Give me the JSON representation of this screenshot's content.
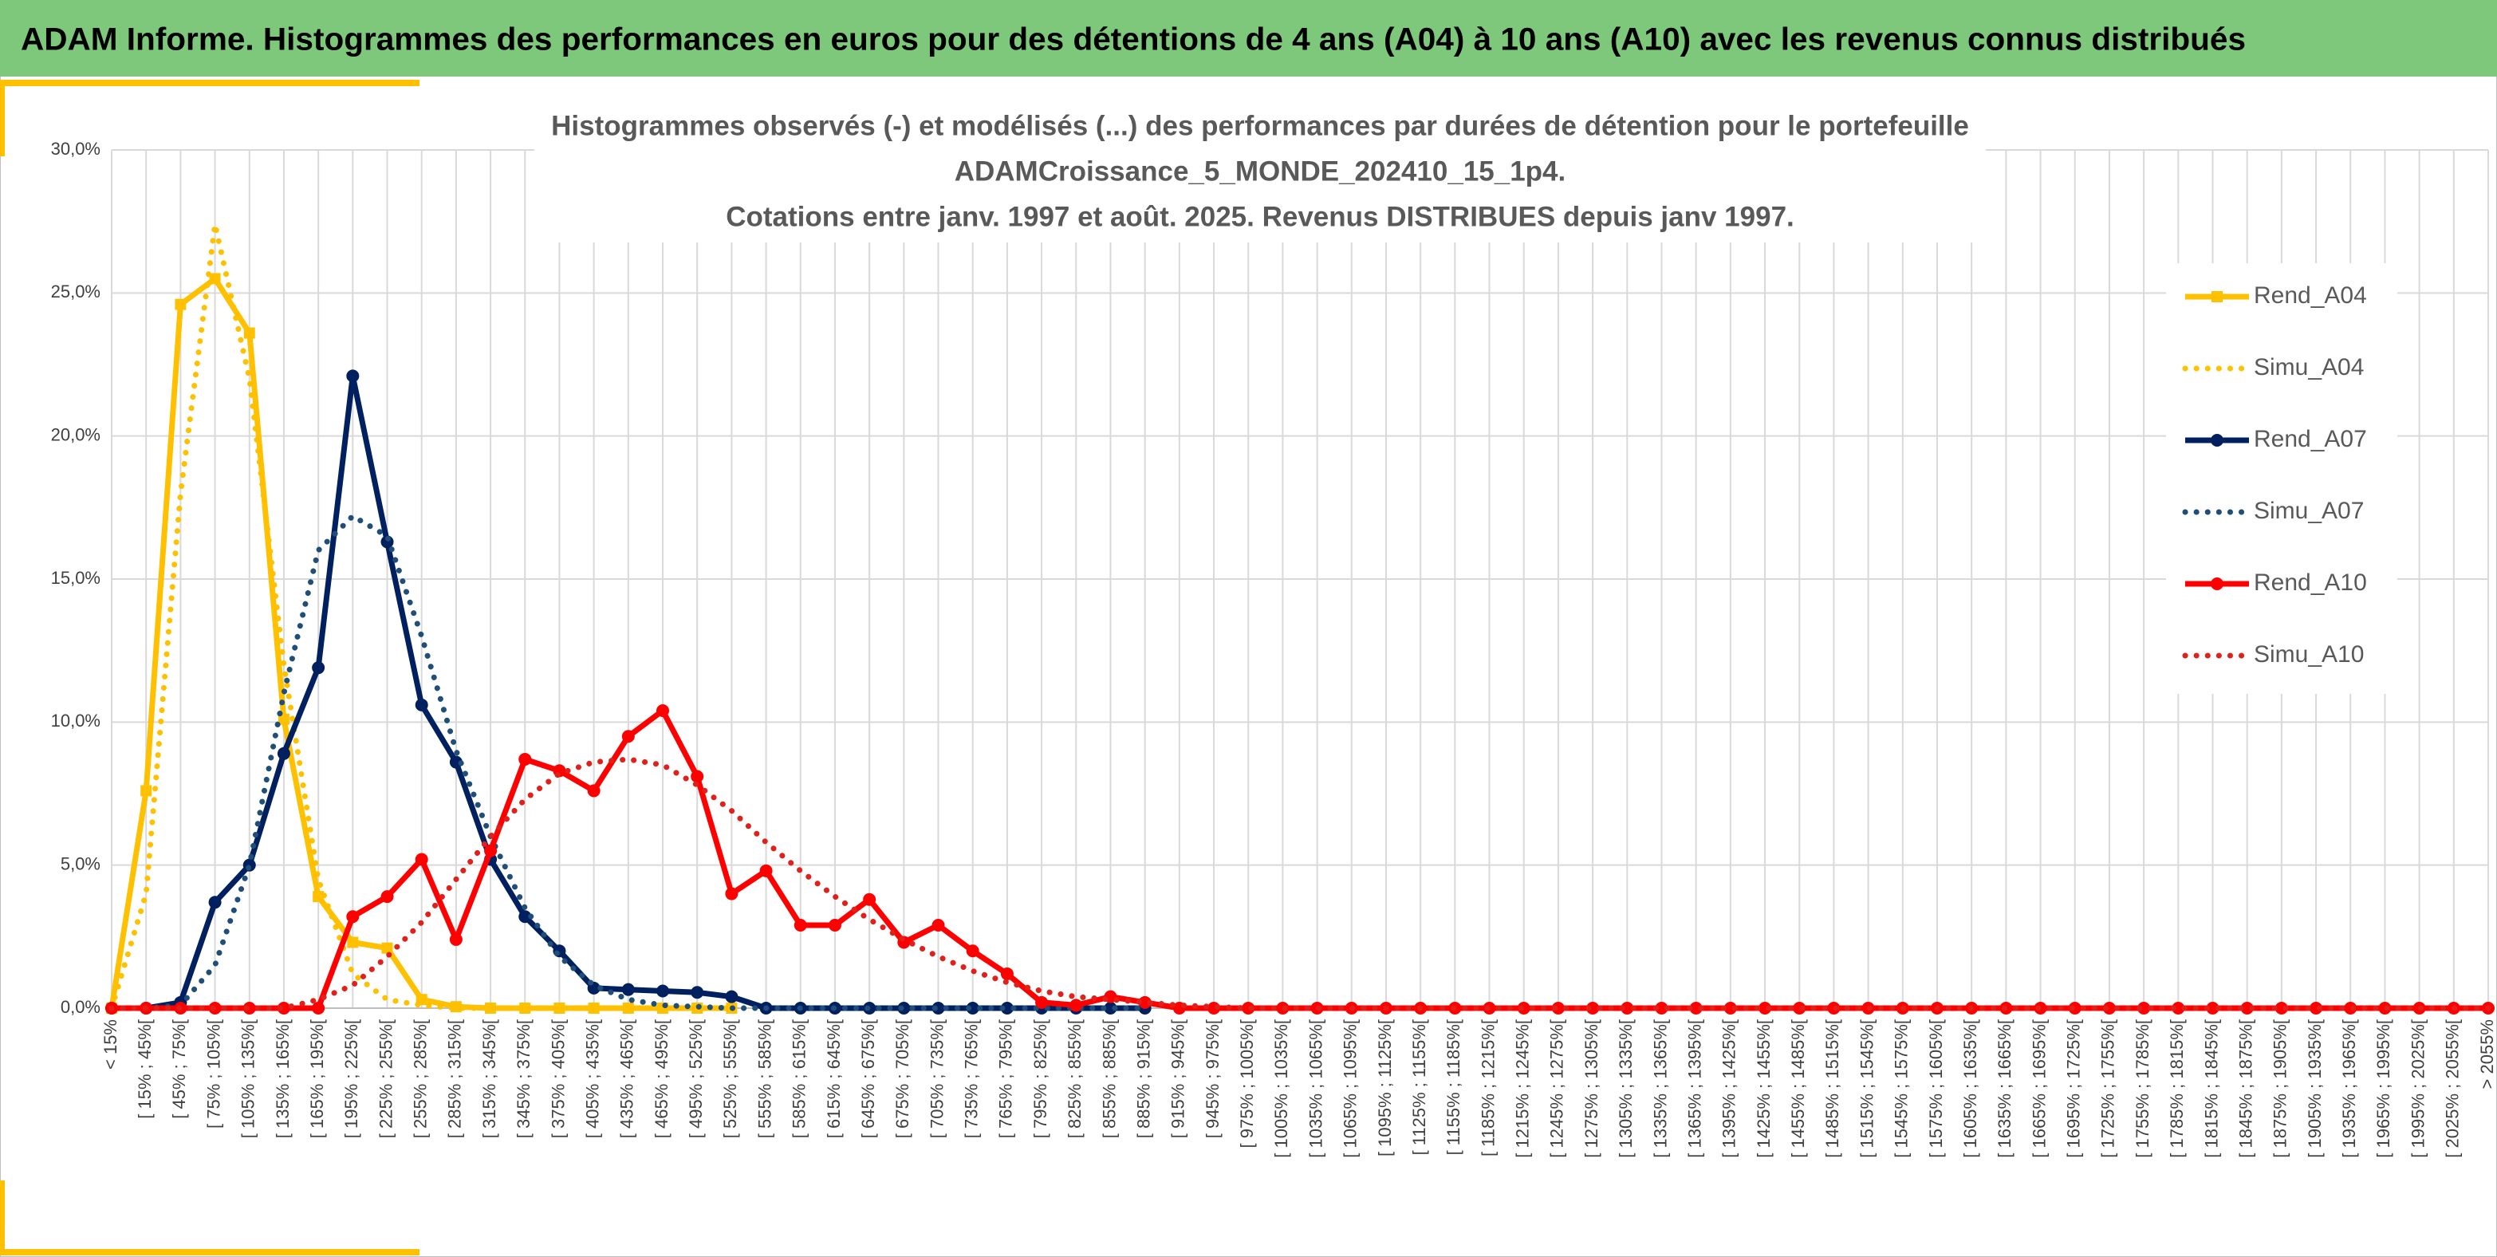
{
  "header": {
    "title": "ADAM Informe. Histogrammes des performances en euros pour des détentions de 4 ans (A04) à 10 ans (A10) avec les revenus connus distribués"
  },
  "chart_data": {
    "type": "line",
    "title": [
      "Histogrammes observés (-) et modélisés (...) des performances par durées de détention pour le portefeuille",
      "ADAMCroissance_5_MONDE_202410_15_1p4.",
      "Cotations entre janv. 1997 et août. 2025. Revenus DISTRIBUES depuis janv 1997."
    ],
    "categories": [
      "< 15%",
      "[ 15% ; 45%[",
      "[ 45% ; 75%[",
      "[ 75% ; 105%[",
      "[ 105% ; 135%[",
      "[ 135% ; 165%[",
      "[ 165% ; 195%[",
      "[ 195% ; 225%[",
      "[ 225% ; 255%[",
      "[ 255% ; 285%[",
      "[ 285% ; 315%[",
      "[ 315% ; 345%[",
      "[ 345% ; 375%[",
      "[ 375% ; 405%[",
      "[ 405% ; 435%[",
      "[ 435% ; 465%[",
      "[ 465% ; 495%[",
      "[ 495% ; 525%[",
      "[ 525% ; 555%[",
      "[ 555% ; 585%[",
      "[ 585% ; 615%[",
      "[ 615% ; 645%[",
      "[ 645% ; 675%[",
      "[ 675% ; 705%[",
      "[ 705% ; 735%[",
      "[ 735% ; 765%[",
      "[ 765% ; 795%[",
      "[ 795% ; 825%[",
      "[ 825% ; 855%[",
      "[ 855% ; 885%[",
      "[ 885% ; 915%[",
      "[ 915% ; 945%[",
      "[ 945% ; 975%[",
      "[ 975% ; 1005%[",
      "[ 1005% ; 1035%[",
      "[ 1035% ; 1065%[",
      "[ 1065% ; 1095%[",
      "[ 1095% ; 1125%[",
      "[ 1125% ; 1155%[",
      "[ 1155% ; 1185%[",
      "[ 1185% ; 1215%[",
      "[ 1215% ; 1245%[",
      "[ 1245% ; 1275%[",
      "[ 1275% ; 1305%[",
      "[ 1305% ; 1335%[",
      "[ 1335% ; 1365%[",
      "[ 1365% ; 1395%[",
      "[ 1395% ; 1425%[",
      "[ 1425% ; 1455%[",
      "[ 1455% ; 1485%[",
      "[ 1485% ; 1515%[",
      "[ 1515% ; 1545%[",
      "[ 1545% ; 1575%[",
      "[ 1575% ; 1605%[",
      "[ 1605% ; 1635%[",
      "[ 1635% ; 1665%[",
      "[ 1665% ; 1695%[",
      "[ 1695% ; 1725%[",
      "[ 1725% ; 1755%[",
      "[ 1755% ; 1785%[",
      "[ 1785% ; 1815%[",
      "[ 1815% ; 1845%[",
      "[ 1845% ; 1875%[",
      "[ 1875% ; 1905%[",
      "[ 1905% ; 1935%[",
      "[ 1935% ; 1965%[",
      "[ 1965% ; 1995%[",
      "[ 1995% ; 2025%[",
      "[ 2025% ; 2055%[",
      "> 2055%"
    ],
    "series": [
      {
        "name": "Rend_A04",
        "color": "#FFC000",
        "style": "solid",
        "marker": "square",
        "values": [
          0,
          7.6,
          24.6,
          25.5,
          23.6,
          10.1,
          3.9,
          2.3,
          2.1,
          0.3,
          0.05,
          0,
          0,
          0,
          0,
          0,
          0,
          0,
          0,
          null,
          null,
          null,
          null,
          null,
          null,
          null,
          null,
          null,
          null,
          null,
          null,
          null,
          null,
          null,
          null,
          null,
          null,
          null,
          null,
          null,
          null,
          null,
          null,
          null,
          null,
          null,
          null,
          null,
          null,
          null,
          null,
          null,
          null,
          null,
          null,
          null,
          null,
          null,
          null,
          null,
          null,
          null,
          null,
          null,
          null,
          null,
          null,
          null,
          null,
          null
        ]
      },
      {
        "name": "Simu_A04",
        "color": "#FFC000",
        "style": "dotted",
        "marker": "none",
        "values": [
          0,
          4,
          18,
          27.4,
          22,
          12,
          4.5,
          1.2,
          0.3,
          0.1,
          0,
          0,
          0,
          0,
          0,
          0,
          0,
          0,
          0,
          null,
          null,
          null,
          null,
          null,
          null,
          null,
          null,
          null,
          null,
          null,
          null,
          null,
          null,
          null,
          null,
          null,
          null,
          null,
          null,
          null,
          null,
          null,
          null,
          null,
          null,
          null,
          null,
          null,
          null,
          null,
          null,
          null,
          null,
          null,
          null,
          null,
          null,
          null,
          null,
          null,
          null,
          null,
          null,
          null,
          null,
          null,
          null,
          null,
          null,
          null
        ]
      },
      {
        "name": "Rend_A07",
        "color": "#002060",
        "style": "solid",
        "marker": "circle",
        "values": [
          0,
          0,
          0.2,
          3.7,
          5.0,
          8.9,
          11.9,
          22.1,
          16.3,
          10.6,
          8.6,
          5.2,
          3.2,
          2.0,
          0.7,
          0.65,
          0.6,
          0.55,
          0.4,
          0,
          0,
          0,
          0,
          0,
          0,
          0,
          0,
          0,
          0,
          0,
          0,
          null,
          null,
          null,
          null,
          null,
          null,
          null,
          null,
          null,
          null,
          null,
          null,
          null,
          null,
          null,
          null,
          null,
          null,
          null,
          null,
          null,
          null,
          null,
          null,
          null,
          null,
          null,
          null,
          null,
          null,
          null,
          null,
          null,
          null,
          null,
          null,
          null,
          null,
          null
        ]
      },
      {
        "name": "Simu_A07",
        "color": "#1F4E79",
        "style": "dotted",
        "marker": "none",
        "values": [
          0,
          0,
          0.1,
          1.5,
          5,
          11,
          16,
          17.2,
          16.5,
          13,
          9,
          6,
          3.5,
          1.8,
          0.8,
          0.3,
          0.1,
          0.05,
          0,
          0,
          0,
          0,
          0,
          0,
          0,
          0,
          0,
          0,
          0,
          0,
          0,
          null,
          null,
          null,
          null,
          null,
          null,
          null,
          null,
          null,
          null,
          null,
          null,
          null,
          null,
          null,
          null,
          null,
          null,
          null,
          null,
          null,
          null,
          null,
          null,
          null,
          null,
          null,
          null,
          null,
          null,
          null,
          null,
          null,
          null,
          null,
          null,
          null,
          null,
          null
        ]
      },
      {
        "name": "Rend_A10",
        "color": "#FF0000",
        "style": "solid",
        "marker": "circle",
        "values": [
          0,
          0,
          0,
          0,
          0,
          0,
          0,
          3.2,
          3.9,
          5.2,
          2.4,
          5.5,
          8.7,
          8.3,
          7.6,
          9.5,
          10.4,
          8.1,
          4.0,
          4.8,
          2.9,
          2.9,
          3.8,
          2.3,
          2.9,
          2.0,
          1.2,
          0.2,
          0.1,
          0.4,
          0.2,
          0,
          0,
          0,
          0,
          0,
          0,
          0,
          0,
          0,
          0,
          0,
          0,
          0,
          0,
          0,
          0,
          0,
          0,
          0,
          0,
          0,
          0,
          0,
          0,
          0,
          0,
          0,
          0,
          0,
          0,
          0,
          0,
          0,
          0,
          0,
          0,
          0,
          0,
          0
        ]
      },
      {
        "name": "Simu_A10",
        "color": "#E0201B",
        "style": "dotted",
        "marker": "none",
        "values": [
          0,
          0,
          0,
          0,
          0,
          0,
          0.3,
          0.8,
          1.8,
          3,
          4.5,
          6,
          7.3,
          8.2,
          8.6,
          8.7,
          8.5,
          7.8,
          6.9,
          5.8,
          4.8,
          3.9,
          3.1,
          2.4,
          1.8,
          1.3,
          0.9,
          0.6,
          0.4,
          0.3,
          0.2,
          0.1,
          0.05,
          0,
          0,
          0,
          0,
          0,
          0,
          0,
          0,
          0,
          0,
          0,
          0,
          0,
          0,
          0,
          0,
          0,
          0,
          0,
          0,
          0,
          0,
          0,
          0,
          0,
          0,
          0,
          0,
          0,
          0,
          0,
          0,
          0,
          0,
          0,
          0,
          0
        ]
      }
    ],
    "ylim": [
      0,
      30
    ],
    "yticks": [
      {
        "value": 0,
        "label": "0,0%"
      },
      {
        "value": 5,
        "label": "5,0%"
      },
      {
        "value": 10,
        "label": "10,0%"
      },
      {
        "value": 15,
        "label": "15,0%"
      },
      {
        "value": 20,
        "label": "20,0%"
      },
      {
        "value": 25,
        "label": "25,0%"
      },
      {
        "value": 30,
        "label": "30,0%"
      }
    ],
    "grid": true,
    "legend": "right"
  }
}
